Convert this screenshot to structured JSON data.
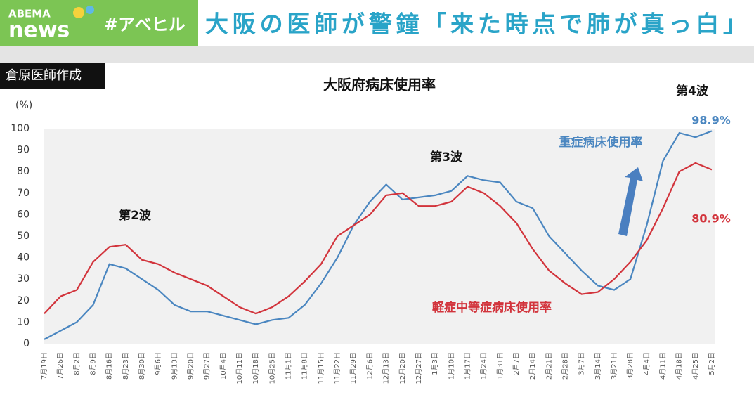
{
  "header": {
    "logo_top": "ABEMA",
    "logo_bottom": "news",
    "hashtag": "#アベヒル",
    "headline": "大阪の医師が警鐘「来た時点で肺が真っ白」",
    "credit": "倉原医師作成"
  },
  "chart_data": {
    "type": "line",
    "title": "大阪府病床使用率",
    "ylabel": "(%)",
    "annotations": [
      "第2波",
      "第3波",
      "第4波"
    ],
    "categories": [
      "7月19日",
      "7月26日",
      "8月2日",
      "8月9日",
      "8月16日",
      "8月23日",
      "8月30日",
      "9月6日",
      "9月13日",
      "9月20日",
      "9月27日",
      "10月4日",
      "10月11日",
      "10月18日",
      "10月25日",
      "11月1日",
      "11月8日",
      "11月15日",
      "11月22日",
      "11月29日",
      "12月6日",
      "12月13日",
      "12月20日",
      "12月27日",
      "1月3日",
      "1月10日",
      "1月17日",
      "1月24日",
      "1月31日",
      "2月7日",
      "2月14日",
      "2月21日",
      "2月28日",
      "3月7日",
      "3月14日",
      "3月21日",
      "3月28日",
      "4月4日",
      "4月11日",
      "4月18日",
      "4月25日",
      "5月2日"
    ],
    "series": [
      {
        "name": "重症病床使用率",
        "color": "#4a86c0",
        "values": [
          2,
          6,
          10,
          18,
          37,
          35,
          30,
          25,
          18,
          15,
          15,
          13,
          11,
          9,
          11,
          12,
          18,
          28,
          40,
          55,
          66,
          74,
          67,
          68,
          69,
          71,
          78,
          76,
          75,
          66,
          63,
          50,
          42,
          34,
          27,
          25,
          30,
          55,
          85,
          98,
          96,
          98.9
        ],
        "value_labels": [
          null,
          null,
          null,
          null,
          null,
          null,
          null,
          null,
          null,
          null,
          null,
          null,
          null,
          null,
          null,
          null,
          null,
          null,
          null,
          null,
          null,
          null,
          null,
          null,
          null,
          null,
          null,
          null,
          null,
          null,
          null,
          null,
          null,
          null,
          null,
          null,
          null,
          null,
          null,
          null,
          null,
          "98.9%"
        ]
      },
      {
        "name": "軽症中等症病床使用率",
        "color": "#d2343c",
        "values": [
          14,
          22,
          25,
          38,
          45,
          46,
          39,
          37,
          33,
          30,
          27,
          22,
          17,
          14,
          17,
          22,
          29,
          37,
          50,
          55,
          60,
          69,
          70,
          64,
          64,
          66,
          73,
          70,
          64,
          56,
          44,
          34,
          28,
          23,
          24,
          30,
          38,
          48,
          63,
          80,
          84,
          80.9
        ],
        "value_labels": [
          null,
          null,
          null,
          null,
          null,
          null,
          null,
          null,
          null,
          null,
          null,
          null,
          null,
          null,
          null,
          null,
          null,
          null,
          null,
          null,
          null,
          null,
          null,
          null,
          null,
          null,
          null,
          null,
          null,
          null,
          null,
          null,
          null,
          null,
          null,
          null,
          null,
          null,
          null,
          null,
          null,
          "80.9%"
        ]
      }
    ],
    "ylim": [
      0,
      100
    ],
    "yticks": [
      0,
      10,
      20,
      30,
      40,
      50,
      60,
      70,
      80,
      90,
      100
    ],
    "grid": false
  }
}
